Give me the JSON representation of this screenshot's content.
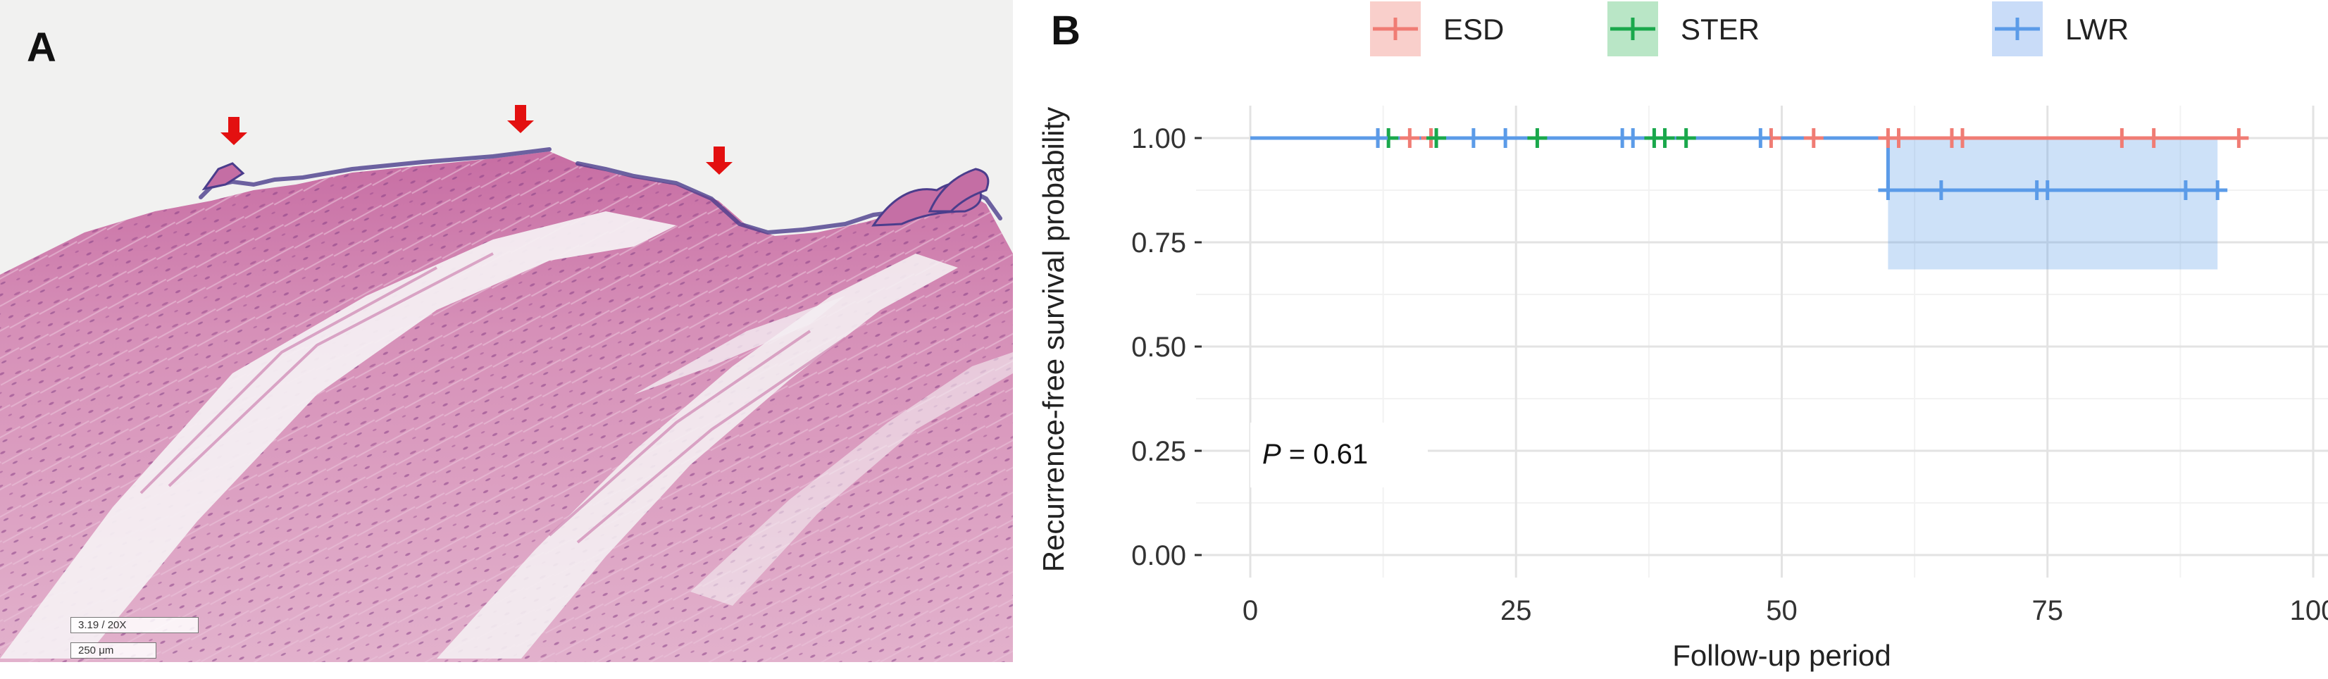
{
  "panel_a": {
    "letter": "A",
    "scale_zoom": "3.19 / 20X",
    "scale_length": "250 μm",
    "arrow_color": "#e31010"
  },
  "panel_b": {
    "letter": "B",
    "p_value_label": "P",
    "p_value_text": " = 0.61"
  },
  "chart_data": {
    "type": "line",
    "subtype": "kaplan-meier",
    "title": "",
    "xlabel": "Follow-up period",
    "ylabel": "Recurrence-free survival probability",
    "xlim": [
      0,
      100
    ],
    "ylim": [
      0,
      1
    ],
    "x_ticks": [
      0,
      25,
      50,
      75,
      100
    ],
    "x_tick_labels": [
      "0",
      "25",
      "50",
      "75",
      "100"
    ],
    "y_ticks": [
      0,
      0.25,
      0.5,
      0.75,
      1.0
    ],
    "y_tick_labels": [
      "0.00",
      "0.25",
      "0.50",
      "0.75",
      "1.00"
    ],
    "grid": true,
    "legend_position": "top",
    "series": [
      {
        "name": "ESD",
        "color": "#f07c74",
        "legend_bg": "#f9cfcb",
        "steps": [
          [
            0,
            1.0
          ],
          [
            93,
            1.0
          ]
        ],
        "censor_times": [
          12,
          15,
          17,
          49,
          53,
          60,
          61,
          66,
          67,
          82,
          85,
          93
        ]
      },
      {
        "name": "STER",
        "color": "#1aa84c",
        "legend_bg": "#b9e6c6",
        "steps": [
          [
            0,
            1.0
          ],
          [
            27,
            1.0
          ]
        ],
        "censor_times": [
          13,
          17.5,
          27,
          38,
          39,
          41
        ]
      },
      {
        "name": "LWR",
        "color": "#5b9be8",
        "legend_bg": "#c9dcf8",
        "steps": [
          [
            0,
            1.0
          ],
          [
            60,
            1.0
          ],
          [
            60,
            0.875
          ],
          [
            91,
            0.875
          ]
        ],
        "censor_times": [
          12,
          21,
          24,
          35,
          36,
          48,
          60,
          65,
          74,
          75,
          88,
          91
        ],
        "ci_band": {
          "x_start": 60,
          "x_end": 91,
          "lower": 0.685,
          "upper": 1.0
        }
      }
    ]
  }
}
